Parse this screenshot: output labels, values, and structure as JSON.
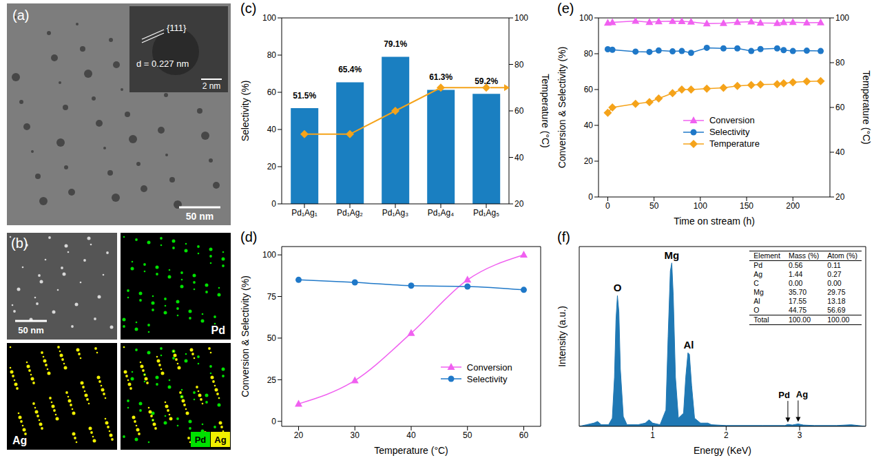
{
  "figure": {
    "a": {
      "panel_label": "(a)",
      "inset_annotations": [
        "{111}",
        "d = 0.227 nm"
      ],
      "inset_scale_bar": "2 nm",
      "scale_bar": "50 nm"
    },
    "b": {
      "panel_label": "(b)",
      "scale_bar": "50 nm",
      "maps": [
        {
          "label": "Pd",
          "color": "#00e000"
        },
        {
          "label": "Ag",
          "color": "#f0f000"
        }
      ],
      "overlay_legend": [
        {
          "name": "Pd",
          "color": "#00e000"
        },
        {
          "name": "Ag",
          "color": "#f0f000"
        }
      ]
    }
  },
  "chart_data": [
    {
      "panel_label": "(c)",
      "type": "bar",
      "categories": [
        "Pd₁Ag₁",
        "Pd₁Ag₂",
        "Pd₁Ag₃",
        "Pd₁Ag₄",
        "Pd₁Ag₅"
      ],
      "series": [
        {
          "type": "bar",
          "color": "#1a7fc1",
          "values": [
            51.5,
            65.4,
            79.1,
            61.3,
            59.2
          ],
          "value_labels": [
            "51.5%",
            "65.4%",
            "79.1%",
            "61.3%",
            "59.2%"
          ],
          "data_labels": true
        },
        {
          "type": "line",
          "axis": "y2",
          "color": "#f5a31a",
          "marker": "diamond",
          "values": [
            50,
            50,
            60,
            70,
            70
          ]
        }
      ],
      "ylabel": "Selectivity (%)",
      "y2label": "Temperature (°C)",
      "ylim": [
        0,
        100
      ],
      "yticks": [
        0,
        20,
        40,
        60,
        80,
        100
      ],
      "y2lim": [
        20,
        100
      ],
      "y2ticks": [
        20,
        40,
        60,
        80,
        100
      ]
    },
    {
      "panel_label": "(d)",
      "type": "line",
      "x": [
        20,
        30,
        40,
        50,
        60
      ],
      "series": [
        {
          "name": "Conversion",
          "color": "#f060f0",
          "marker": "triangle",
          "values": [
            10.5,
            24.5,
            53,
            85,
            100
          ]
        },
        {
          "name": "Selectivity",
          "color": "#1f78c8",
          "marker": "circle",
          "values": [
            85,
            83.5,
            81.5,
            81,
            79
          ]
        }
      ],
      "xlabel": "Temperature (°C)",
      "ylabel": "Conversion & Selectivity (%)",
      "xlim": [
        17,
        63
      ],
      "xticks": [
        20,
        30,
        40,
        50,
        60
      ],
      "ylim": [
        -3,
        105
      ],
      "yticks": [
        0,
        25,
        50,
        75,
        100
      ],
      "legend": "lower right"
    },
    {
      "panel_label": "(e)",
      "type": "line",
      "x": [
        0,
        5,
        30,
        45,
        55,
        70,
        80,
        90,
        107,
        125,
        140,
        155,
        165,
        183,
        190,
        200,
        215,
        230
      ],
      "series": [
        {
          "name": "Conversion",
          "color": "#f060f0",
          "marker": "triangle",
          "values": [
            97.2,
            97.5,
            98.3,
            97.6,
            98,
            98.2,
            98.1,
            97.8,
            96.8,
            97,
            97.6,
            97.9,
            97.2,
            97,
            97.5,
            97.6,
            97.3,
            97.4
          ]
        },
        {
          "name": "Selectivity",
          "color": "#1f78c8",
          "marker": "circle",
          "values": [
            82.5,
            82.2,
            81.2,
            81,
            81.8,
            81.3,
            81.5,
            80.5,
            83.3,
            83,
            83,
            81.5,
            82.6,
            83,
            82,
            81.5,
            81.7,
            81.5
          ]
        },
        {
          "name": "Temperature",
          "color": "#f5a31a",
          "marker": "diamond",
          "axis": "y2",
          "values": [
            57.6,
            60,
            61.6,
            62.4,
            64,
            66.4,
            68,
            68,
            68.4,
            68.8,
            69.6,
            70,
            70.2,
            70.4,
            70.8,
            71.2,
            71.6,
            71.8
          ]
        }
      ],
      "xlabel": "Time on stream (h)",
      "ylabel": "Conversion & Selectivity (%)",
      "y2label": "Temperature (°C)",
      "xlim": [
        -10,
        240
      ],
      "xticks": [
        0,
        50,
        100,
        150,
        200
      ],
      "ylim": [
        0,
        100
      ],
      "yticks": [
        0,
        20,
        40,
        60,
        80,
        100
      ],
      "y2lim": [
        20,
        100
      ],
      "y2ticks": [
        20,
        40,
        60,
        80,
        100
      ],
      "legend": "center"
    },
    {
      "panel_label": "(f)",
      "type": "area",
      "x": [
        0,
        0.1,
        0.2,
        0.25,
        0.3,
        0.4,
        0.45,
        0.48,
        0.5,
        0.52,
        0.54,
        0.56,
        0.6,
        0.65,
        0.8,
        0.9,
        0.95,
        1.0,
        1.1,
        1.18,
        1.21,
        1.24,
        1.26,
        1.28,
        1.31,
        1.35,
        1.42,
        1.45,
        1.48,
        1.5,
        1.53,
        1.57,
        1.65,
        1.75,
        1.8,
        2.0,
        2.5,
        2.8,
        2.84,
        2.9,
        2.98,
        3.05,
        3.2,
        3.5,
        3.7,
        3.8,
        3.9
      ],
      "values": [
        0,
        0.01,
        0.02,
        0.03,
        0.01,
        0.01,
        0.05,
        0.3,
        0.65,
        0.8,
        0.7,
        0.35,
        0.06,
        0.01,
        0.01,
        0.02,
        0.04,
        0.02,
        0.01,
        0.1,
        0.55,
        0.95,
        1.0,
        0.8,
        0.3,
        0.05,
        0.08,
        0.3,
        0.45,
        0.44,
        0.25,
        0.05,
        0.02,
        0.02,
        0.01,
        0.005,
        0.005,
        0.005,
        0.012,
        0.008,
        0.015,
        0.008,
        0.005,
        0.005,
        0.01,
        0.005,
        0
      ],
      "color": "#1f78b4",
      "xlabel": "Energy (KeV)",
      "ylabel": "Intensity (a.u.)",
      "xlim": [
        0,
        3.9
      ],
      "xticks": [
        1,
        2,
        3
      ],
      "ylim": [
        0,
        1.1
      ],
      "tick_labels": "x",
      "annotations": [
        {
          "text": "O",
          "x": 0.52,
          "y": 0.8
        },
        {
          "text": "Mg",
          "x": 1.26,
          "y": 1.0
        },
        {
          "text": "Al",
          "x": 1.49,
          "y": 0.45
        }
      ],
      "arrow_annotations": [
        {
          "text": "Pd",
          "x": 2.84,
          "y": 0.012
        },
        {
          "text": "Ag",
          "x": 2.98,
          "y": 0.015
        }
      ],
      "table": {
        "columns": [
          "Element",
          "Mass (%)",
          "Atom (%)"
        ],
        "rows": [
          [
            "Pd",
            "0.56",
            "0.11"
          ],
          [
            "Ag",
            "1.44",
            "0.27"
          ],
          [
            "C",
            "0.00",
            "0.00"
          ],
          [
            "Mg",
            "35.70",
            "29.75"
          ],
          [
            "Al",
            "17.55",
            "13.18"
          ],
          [
            "O",
            "44.75",
            "56.69"
          ],
          [
            "Total",
            "100.00",
            "100.00"
          ]
        ]
      }
    }
  ]
}
